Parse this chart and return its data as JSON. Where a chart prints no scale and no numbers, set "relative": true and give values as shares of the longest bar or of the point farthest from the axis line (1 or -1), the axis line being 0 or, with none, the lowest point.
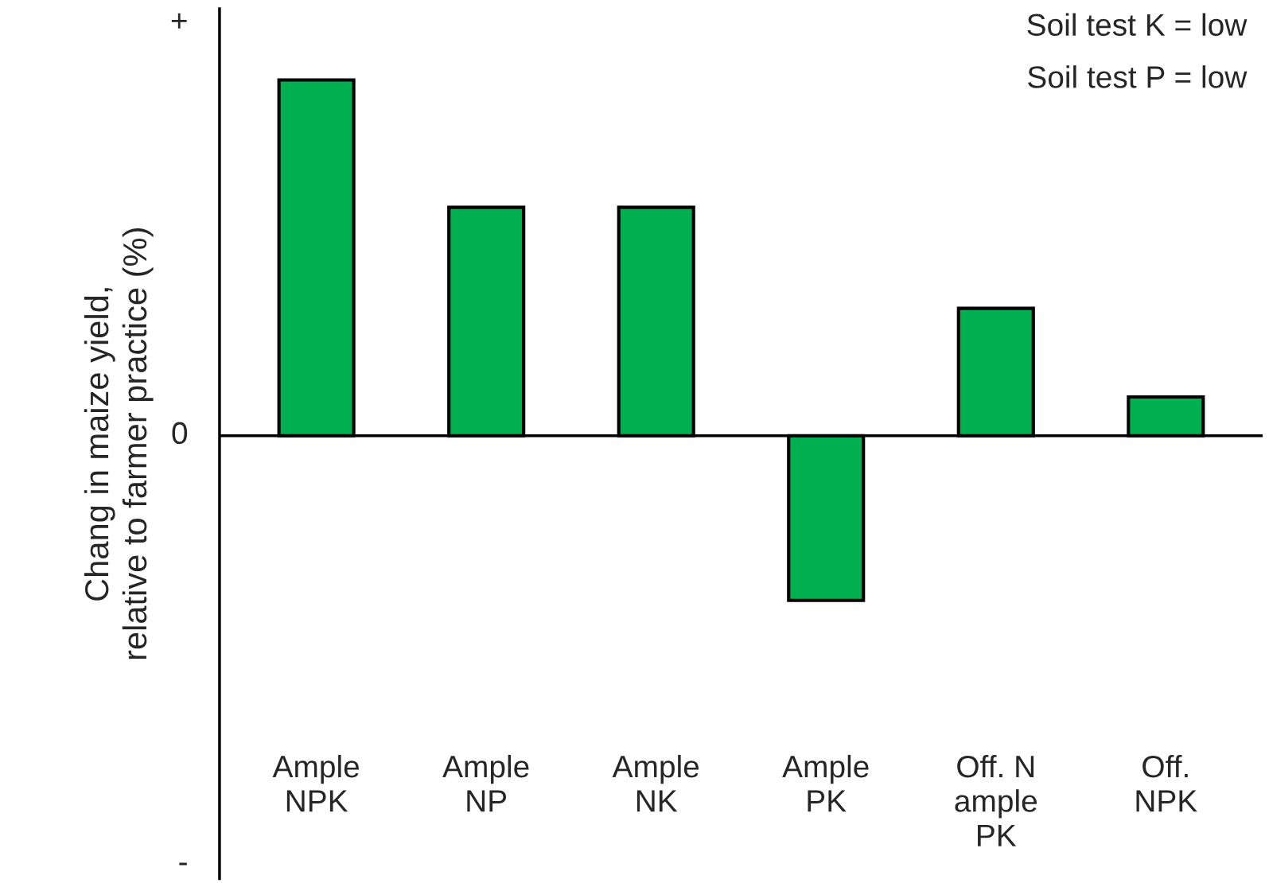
{
  "chart_data": {
    "type": "bar",
    "relative": true,
    "ylabel": "Chang in maize yield,\nrelative to farmer practice (%)",
    "categories": [
      "Ample\nNPK",
      "Ample\nNP",
      "Ample\nNK",
      "Ample\nPK",
      "Off. N\nample\nPK",
      "Off.\nNPK"
    ],
    "values": [
      1,
      0.642,
      0.642,
      -0.463,
      0.358,
      0.109
    ],
    "color": "#00b050",
    "annotations": [
      "Soil test K = low",
      "Soil test P = low",
      "+",
      "0",
      "-"
    ],
    "grid": false,
    "legend": false
  }
}
